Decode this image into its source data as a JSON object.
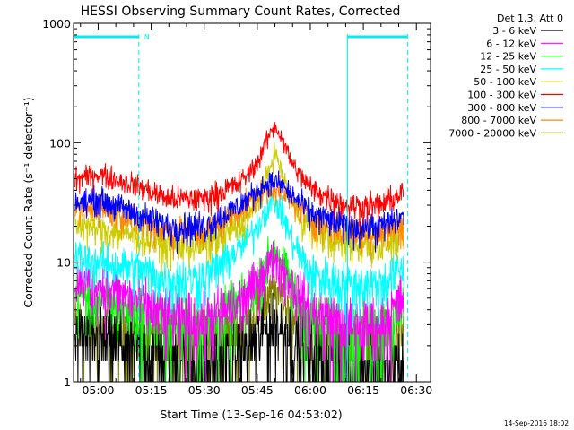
{
  "chart_data": {
    "type": "line",
    "title": "HESSI Observing Summary Count Rates, Corrected",
    "xlabel": "Start Time (13-Sep-16 04:53:02)",
    "ylabel": "Corrected Count Rate (s⁻¹ detector⁻¹)",
    "footer_date": "14-Sep-2016 18:02",
    "legend_header": "Det 1,3, Att 0",
    "x_ticks": [
      "05:00",
      "05:15",
      "05:30",
      "05:45",
      "06:00",
      "06:15",
      "06:30"
    ],
    "x_tick_minutes": [
      0,
      15,
      30,
      45,
      60,
      75,
      90
    ],
    "x_range_minutes": [
      -6.97,
      94.0
    ],
    "y_scale": "log",
    "y_range": [
      1,
      1000
    ],
    "y_tick_labels": [
      "1",
      "10",
      "100",
      "1000"
    ],
    "y_tick_values": [
      1,
      10,
      100,
      1000
    ],
    "grid": false,
    "legend_placement": "outside-right",
    "night_intervals_minutes": [
      [
        -6.97,
        11.5
      ],
      [
        70.5,
        87.5
      ]
    ],
    "night_flag_label": "N",
    "night_flag_color": "#00eeee",
    "series": [
      {
        "name": "3 - 6 keV",
        "color": "#000000",
        "x": [
          -6,
          0,
          10,
          20,
          30,
          40,
          45,
          48,
          50,
          52,
          55,
          60,
          70,
          80,
          86
        ],
        "y": [
          2.5,
          2.3,
          2.0,
          1.6,
          1.4,
          1.8,
          2.4,
          2.8,
          3.0,
          2.8,
          2.4,
          1.8,
          1.3,
          1.3,
          1.4
        ]
      },
      {
        "name": "6 - 12 keV",
        "color": "#ff00ff",
        "x": [
          -6,
          0,
          10,
          20,
          30,
          40,
          45,
          48,
          50,
          52,
          55,
          60,
          70,
          80,
          86
        ],
        "y": [
          7.0,
          6.5,
          5.0,
          3.5,
          3.2,
          4.5,
          7.0,
          9.5,
          11.0,
          9.0,
          6.5,
          4.0,
          3.0,
          3.0,
          5.0
        ]
      },
      {
        "name": "12 - 25 keV",
        "color": "#00ff00",
        "x": [
          -6,
          0,
          10,
          20,
          30,
          40,
          45,
          48,
          50,
          52,
          55,
          60,
          70,
          80,
          86
        ],
        "y": [
          5.5,
          5.0,
          4.2,
          3.0,
          2.8,
          4.5,
          7.0,
          11.0,
          13.0,
          10.0,
          6.0,
          3.2,
          2.5,
          2.6,
          4.0
        ]
      },
      {
        "name": "25 - 50 keV",
        "color": "#00ffff",
        "x": [
          -6,
          0,
          10,
          20,
          30,
          40,
          45,
          48,
          50,
          52,
          55,
          60,
          70,
          80,
          86
        ],
        "y": [
          11.0,
          10.0,
          9.0,
          7.0,
          7.5,
          13.0,
          20.0,
          30.0,
          33.0,
          26.0,
          15.0,
          8.0,
          6.5,
          6.5,
          9.0
        ]
      },
      {
        "name": "50 - 100 keV",
        "color": "#cccc00",
        "x": [
          -6,
          0,
          10,
          20,
          30,
          40,
          45,
          48,
          50,
          52,
          55,
          60,
          70,
          80,
          86
        ],
        "y": [
          21.0,
          19.0,
          17.0,
          14.0,
          14.0,
          20.0,
          30.0,
          55.0,
          85.0,
          55.0,
          30.0,
          19.0,
          14.0,
          14.0,
          17.0
        ]
      },
      {
        "name": "100 - 300 keV",
        "color": "#ff0000",
        "x": [
          -6,
          0,
          10,
          20,
          30,
          40,
          45,
          48,
          50,
          52,
          55,
          60,
          70,
          80,
          86
        ],
        "y": [
          50.0,
          55.0,
          45.0,
          34.0,
          34.0,
          46.0,
          68.0,
          110.0,
          140.0,
          108.0,
          66.0,
          42.0,
          30.0,
          30.0,
          38.0
        ]
      },
      {
        "name": "300 - 800 keV",
        "color": "#0000ff",
        "x": [
          -6,
          0,
          10,
          20,
          30,
          40,
          45,
          48,
          50,
          52,
          55,
          60,
          70,
          80,
          86
        ],
        "y": [
          31.0,
          34.0,
          26.0,
          20.0,
          20.0,
          30.0,
          40.0,
          46.0,
          47.0,
          44.0,
          36.0,
          26.0,
          20.0,
          20.0,
          24.0
        ]
      },
      {
        "name": "800 - 7000 keV",
        "color": "#ff8800",
        "x": [
          -6,
          0,
          10,
          20,
          30,
          40,
          45,
          48,
          50,
          52,
          55,
          60,
          70,
          80,
          86
        ],
        "y": [
          27.0,
          29.0,
          23.0,
          18.0,
          18.0,
          27.0,
          36.0,
          41.0,
          42.0,
          39.0,
          32.0,
          23.0,
          18.0,
          18.0,
          20.0
        ]
      },
      {
        "name": "7000 - 20000 keV",
        "color": "#808000",
        "x": [
          -6,
          0,
          10,
          20,
          30,
          40,
          45,
          48,
          50,
          52,
          55,
          60,
          70,
          80,
          86
        ],
        "y": [
          3.0,
          2.8,
          2.5,
          2.3,
          2.2,
          2.8,
          4.0,
          5.0,
          5.5,
          5.0,
          3.8,
          2.6,
          2.2,
          2.2,
          2.6
        ]
      }
    ]
  }
}
